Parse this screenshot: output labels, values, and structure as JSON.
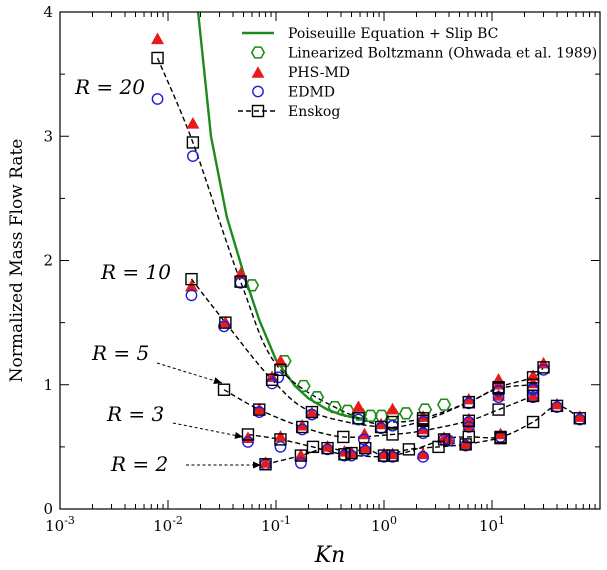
{
  "chart_data": {
    "type": "scatter",
    "xscale": "log",
    "xlim": [
      0.001,
      100
    ],
    "ylim": [
      0,
      4
    ],
    "xlabel": "Kn",
    "ylabel": "Normalized Mass Flow Rate",
    "x_ticks": [
      0.001,
      0.01,
      0.1,
      1,
      10
    ],
    "x_tick_labels": [
      {
        "base": "10",
        "exp": "-3"
      },
      {
        "base": "10",
        "exp": "-2"
      },
      {
        "base": "10",
        "exp": "-1"
      },
      {
        "base": "10",
        "exp": "0"
      },
      {
        "base": "10",
        "exp": "1"
      }
    ],
    "y_ticks": [
      0,
      1,
      2,
      3,
      4
    ],
    "y_tick_labels": [
      "0",
      "1",
      "2",
      "3",
      "4"
    ],
    "grid": false,
    "legend_position": "top-right",
    "colors": {
      "poiseuille": "#1e8a1e",
      "lb": "#1e8a1e",
      "phs": "#e81a1a",
      "edmd": "#1f1fd6",
      "enskog": "#000000"
    },
    "legend": [
      {
        "key": "poiseuille",
        "label": "Poiseuille Equation + Slip BC"
      },
      {
        "key": "lb",
        "label": "Linearized Boltzmann (Ohwada et al. 1989)"
      },
      {
        "key": "phs",
        "label": "PHS-MD"
      },
      {
        "key": "edmd",
        "label": "EDMD"
      },
      {
        "key": "enskog",
        "label": "Enskog"
      }
    ],
    "annotations": [
      "R = 20",
      "R = 10",
      "R = 5",
      "R = 3",
      "R = 2"
    ],
    "series": [
      {
        "name": "Poiseuille Equation + Slip BC",
        "kind": "line",
        "x": [
          0.019,
          0.025,
          0.035,
          0.05,
          0.07,
          0.1,
          0.15,
          0.2,
          0.3,
          0.4,
          0.5,
          0.6,
          0.7
        ],
        "y": [
          4.0,
          3.0,
          2.35,
          1.9,
          1.52,
          1.2,
          0.99,
          0.89,
          0.8,
          0.76,
          0.74,
          0.73,
          0.725
        ]
      },
      {
        "name": "Linearized Boltzmann (Ohwada et al. 1989)",
        "kind": "hexagon",
        "x": [
          0.06,
          0.12,
          0.18,
          0.24,
          0.35,
          0.46,
          0.6,
          0.75,
          0.95,
          1.2,
          1.6,
          2.4,
          3.6
        ],
        "y": [
          1.8,
          1.19,
          0.99,
          0.9,
          0.82,
          0.79,
          0.76,
          0.75,
          0.75,
          0.76,
          0.77,
          0.8,
          0.84
        ]
      },
      {
        "name": "PHS-MD",
        "kind": "triangle",
        "x": [
          0.008,
          0.017,
          0.047,
          0.11,
          0.58,
          1.2,
          11.5,
          24,
          30,
          0.0165,
          0.092,
          0.215,
          0.94,
          2.3,
          6.1,
          11.5,
          24,
          0.034,
          0.07,
          0.175,
          0.66,
          2.3,
          6.1,
          11.5,
          0.055,
          0.11,
          0.43,
          1.2,
          3.6,
          6.1,
          12,
          24,
          40,
          65,
          0.08,
          0.17,
          0.3,
          0.5,
          0.67,
          1.0,
          2.3,
          4.0,
          5.7
        ],
        "y": [
          3.78,
          3.1,
          1.89,
          1.19,
          0.82,
          0.8,
          1.04,
          1.07,
          1.17,
          1.79,
          1.06,
          0.77,
          0.68,
          0.74,
          0.88,
          1.0,
          1.01,
          1.5,
          0.8,
          0.67,
          0.6,
          0.64,
          0.72,
          0.91,
          0.57,
          0.58,
          0.46,
          0.44,
          0.57,
          0.67,
          0.6,
          0.91,
          0.84,
          0.74,
          0.37,
          0.43,
          0.5,
          0.45,
          0.49,
          0.44,
          0.44,
          0.56,
          0.52
        ]
      },
      {
        "name": "EDMD",
        "kind": "circle",
        "x": [
          0.008,
          0.017,
          0.047,
          0.105,
          0.58,
          1.2,
          11.5,
          24,
          30,
          0.0165,
          0.092,
          0.215,
          0.94,
          2.3,
          6.1,
          11.5,
          24,
          0.033,
          0.07,
          0.175,
          0.65,
          2.3,
          6.1,
          11.5,
          0.055,
          0.11,
          0.43,
          1.2,
          3.6,
          6.1,
          12,
          24,
          40,
          65,
          0.08,
          0.17,
          0.3,
          0.5,
          0.67,
          1.0,
          2.3,
          4.0,
          5.7
        ],
        "y": [
          3.3,
          2.84,
          1.82,
          1.06,
          0.72,
          0.67,
          0.95,
          0.96,
          1.12,
          1.72,
          1.01,
          0.76,
          0.65,
          0.7,
          0.85,
          0.95,
          0.97,
          1.47,
          0.78,
          0.64,
          0.56,
          0.61,
          0.7,
          0.9,
          0.54,
          0.5,
          0.43,
          0.42,
          0.56,
          0.66,
          0.58,
          0.9,
          0.82,
          0.72,
          0.36,
          0.37,
          0.48,
          0.43,
          0.47,
          0.42,
          0.42,
          0.55,
          0.51
        ]
      }
    ],
    "enskog_curves": [
      {
        "name": "R = 20",
        "x": [
          0.008,
          0.017,
          0.047,
          0.11,
          0.58,
          1.2,
          2.3,
          6.1,
          11.5,
          24,
          30
        ],
        "y": [
          3.63,
          2.95,
          1.83,
          1.12,
          0.73,
          0.7,
          0.73,
          0.86,
          0.98,
          1.06,
          1.14
        ]
      },
      {
        "name": "R = 10",
        "x": [
          0.0165,
          0.034,
          0.092,
          0.215,
          0.94,
          2.3,
          6.1,
          11.5,
          24
        ],
        "y": [
          1.85,
          1.5,
          1.04,
          0.78,
          0.66,
          0.71,
          0.86,
          0.97,
          1.0
        ]
      },
      {
        "name": "R = 5",
        "x": [
          0.033,
          0.07,
          0.175,
          0.42,
          1.2,
          2.3,
          6.1,
          11.5,
          24
        ],
        "y": [
          0.96,
          0.8,
          0.66,
          0.58,
          0.6,
          0.63,
          0.71,
          0.8,
          0.91
        ]
      },
      {
        "name": "R = 3",
        "x": [
          0.055,
          0.11,
          0.22,
          0.43,
          1.2,
          3.6,
          6.1,
          12,
          24,
          40,
          65
        ],
        "y": [
          0.6,
          0.56,
          0.5,
          0.44,
          0.43,
          0.56,
          0.58,
          0.58,
          0.7,
          0.83,
          0.73
        ]
      },
      {
        "name": "R = 2",
        "x": [
          0.08,
          0.17,
          0.3,
          0.5,
          0.67,
          1.0,
          1.7,
          3.2,
          5.7,
          12
        ],
        "y": [
          0.36,
          0.43,
          0.49,
          0.45,
          0.49,
          0.43,
          0.48,
          0.5,
          0.52,
          0.57
        ]
      }
    ]
  }
}
